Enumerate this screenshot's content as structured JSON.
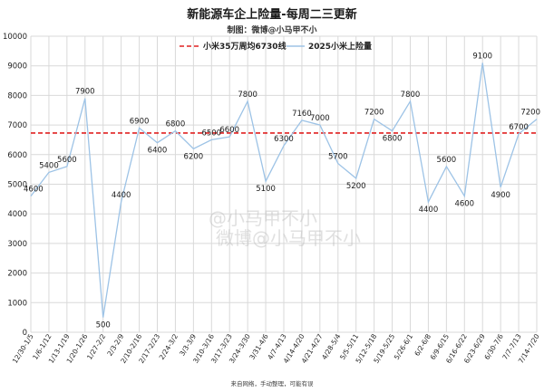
{
  "title": "新能源车企上险量-每周二三更新",
  "subtitle": "制图：微博@小马甲不小",
  "footer": "来自网络，手动整理，可能有误",
  "watermark": "微博@小马甲不小",
  "watermark_handle": "@小马甲不小",
  "colors": {
    "series": "#9dc3e6",
    "reference": "#e02020",
    "grid": "#d9d9d9"
  },
  "chart_data": {
    "type": "line",
    "title": "新能源车企上险量-每周二三更新",
    "xlabel": "",
    "ylabel": "",
    "ylim": [
      0,
      10000
    ],
    "yticks": [
      0,
      1000,
      2000,
      3000,
      4000,
      5000,
      6000,
      7000,
      8000,
      9000,
      10000
    ],
    "grid": true,
    "legend_position": "top",
    "categories": [
      "12/30-1/5",
      "1/6-1/12",
      "1/13-1/19",
      "1/20-1/26",
      "1/27-2/2",
      "2/3-2/9",
      "2/10-2/16",
      "2/17-2/23",
      "2/24-3/2",
      "3/3-3/9",
      "3/10-3/16",
      "3/17-3/23",
      "3/24-3/30",
      "3/31-4/6",
      "4/7-4/13",
      "4/14-4/20",
      "4/21-4/27",
      "4/28-5/4",
      "5/5-5/11",
      "5/12-5/18",
      "5/19-5/25",
      "5/26-6/1",
      "6/2-6/8",
      "6/9-6/15",
      "6/16-6/22",
      "6/23-6/29",
      "6/30-7/6",
      "7/7-7/13",
      "7/14-7/20"
    ],
    "series": [
      {
        "name": "2025小米上险量",
        "values": [
          4600,
          5400,
          5600,
          7900,
          500,
          4400,
          6900,
          6400,
          6800,
          6200,
          6500,
          6600,
          7800,
          5100,
          6300,
          7160,
          7000,
          5700,
          5200,
          7200,
          6800,
          7800,
          4400,
          5600,
          4600,
          9100,
          4900,
          6700,
          7200
        ]
      }
    ],
    "reference_line": {
      "name": "小米35万周均6730线",
      "value": 6730
    }
  }
}
